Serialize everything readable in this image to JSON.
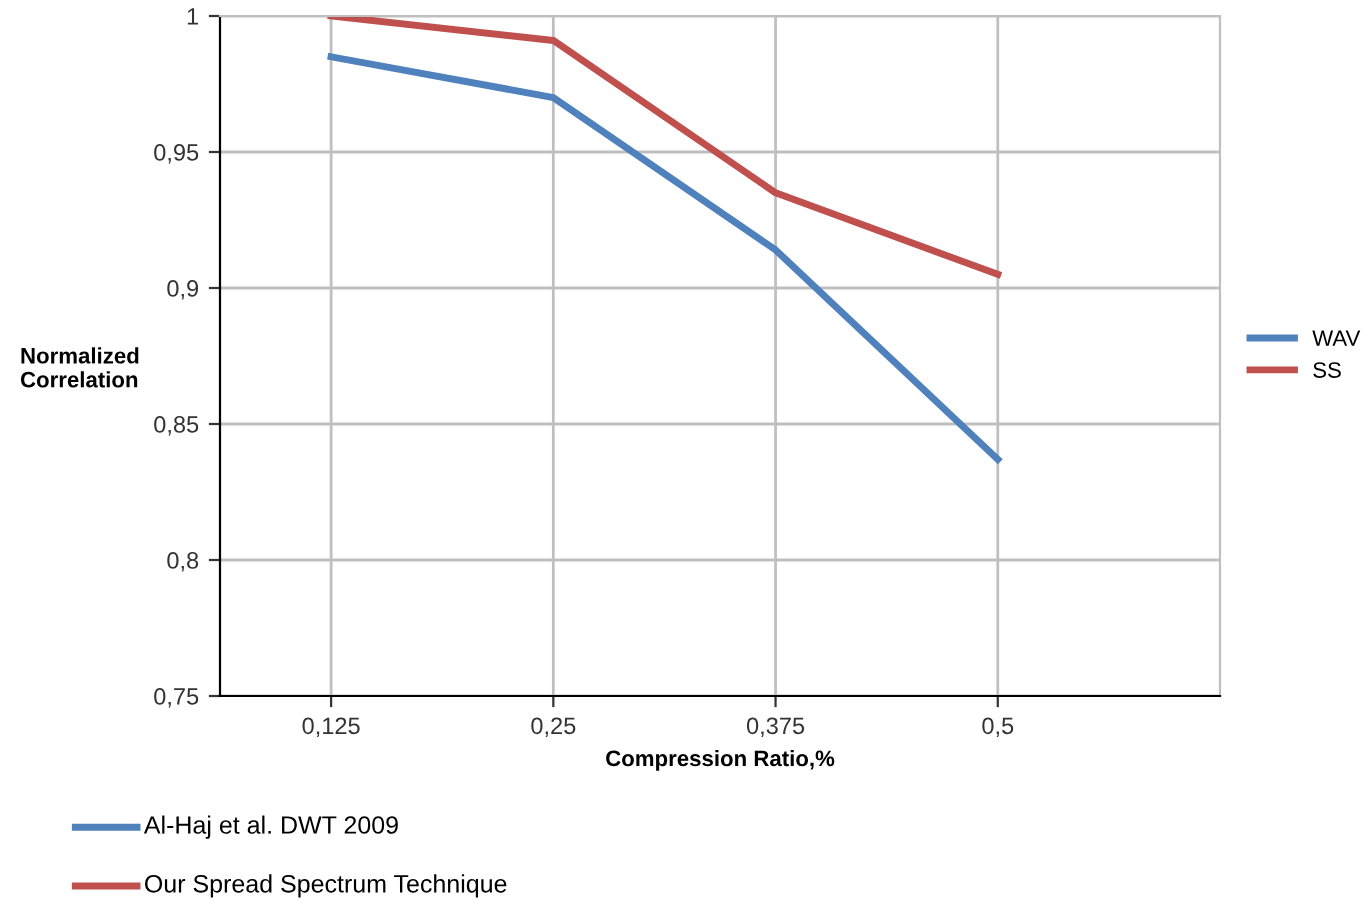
{
  "chart_data": {
    "type": "line",
    "xlabel": "Compression Ratio,%",
    "ylabel": "Normalized\nCorrelation",
    "categories": [
      "0,125",
      "0,25",
      "0,375",
      "0,5"
    ],
    "series": [
      {
        "name": "WAV",
        "color": "#4f81bd",
        "values": [
          0.985,
          0.97,
          0.914,
          0.837
        ]
      },
      {
        "name": "SS",
        "color": "#c0504d",
        "values": [
          1.0,
          0.991,
          0.935,
          0.905
        ]
      }
    ],
    "ylim": [
      0.75,
      1
    ],
    "yticks": [
      {
        "value": 0.75,
        "label": "0,75"
      },
      {
        "value": 0.8,
        "label": "0,8"
      },
      {
        "value": 0.85,
        "label": "0,85"
      },
      {
        "value": 0.9,
        "label": "0,9"
      },
      {
        "value": 0.95,
        "label": "0,95"
      },
      {
        "value": 1,
        "label": "1"
      }
    ],
    "grid": true,
    "legend": "right",
    "marker": "none",
    "line_style": "solid",
    "annotations": [
      "Al-Haj et al. DWT 2009",
      "Our Spread Spectrum Technique"
    ]
  }
}
